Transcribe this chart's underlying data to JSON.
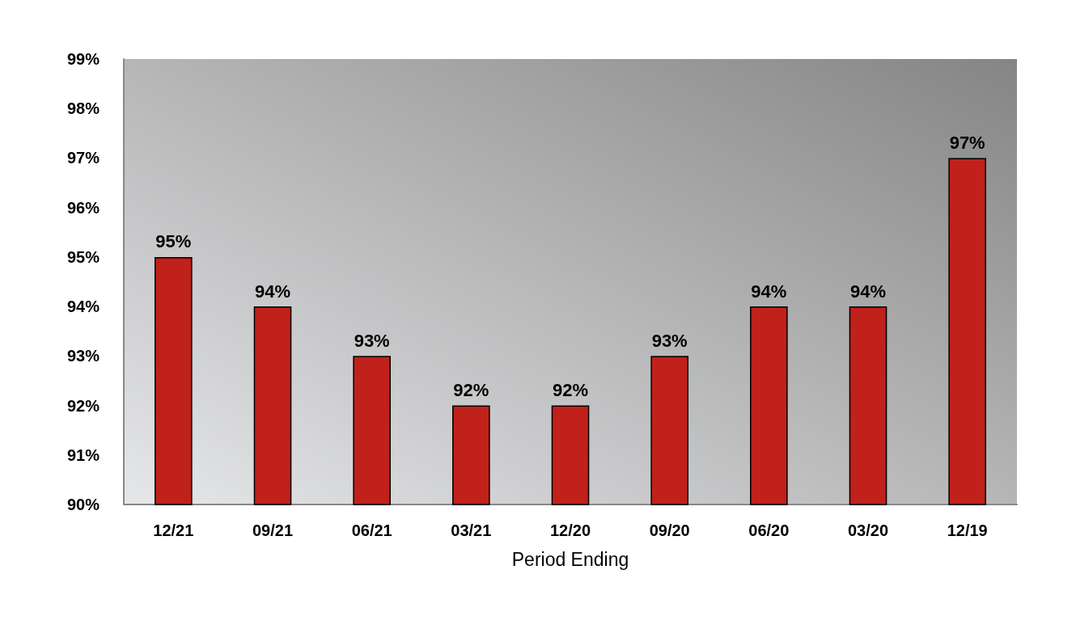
{
  "chart_data": {
    "type": "bar",
    "xlabel": "Period Ending",
    "categories": [
      "12/21",
      "09/21",
      "06/21",
      "03/21",
      "12/20",
      "09/20",
      "06/20",
      "03/20",
      "12/19"
    ],
    "values": [
      95,
      94,
      93,
      92,
      92,
      93,
      94,
      94,
      97
    ],
    "value_labels": [
      "95%",
      "94%",
      "93%",
      "92%",
      "92%",
      "93%",
      "94%",
      "94%",
      "97%"
    ],
    "color": "#c0211a",
    "ylim": [
      90,
      99
    ],
    "yticks": [
      {
        "value": 90,
        "label": "90%"
      },
      {
        "value": 91,
        "label": "91%"
      },
      {
        "value": 92,
        "label": "92%"
      },
      {
        "value": 93,
        "label": "93%"
      },
      {
        "value": 94,
        "label": "94%"
      },
      {
        "value": 95,
        "label": "95%"
      },
      {
        "value": 96,
        "label": "96%"
      },
      {
        "value": 97,
        "label": "97%"
      },
      {
        "value": 98,
        "label": "98%"
      },
      {
        "value": 99,
        "label": "99%"
      }
    ],
    "grid": false
  }
}
